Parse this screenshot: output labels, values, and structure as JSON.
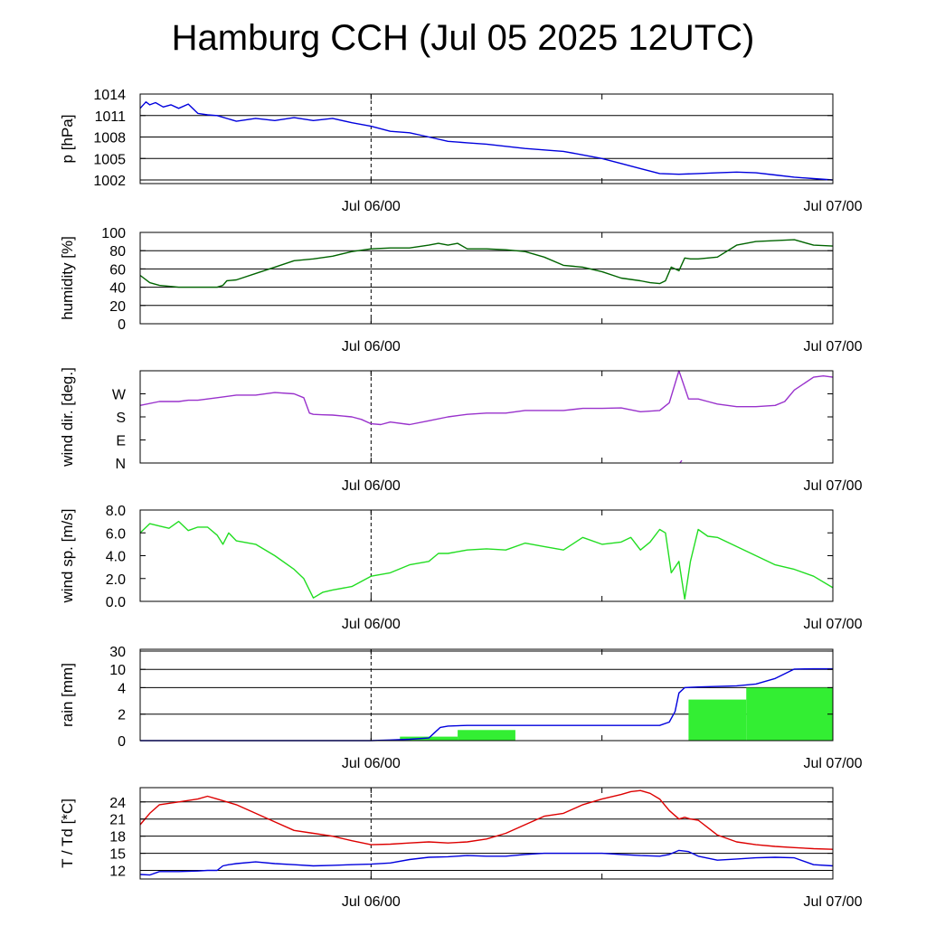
{
  "page": {
    "title": "Hamburg CCH (Jul 05 2025 12UTC)"
  },
  "x_axis": {
    "domain_hours": [
      0,
      36
    ],
    "tick_hours": [
      12,
      24,
      36
    ],
    "label_hours": [
      12,
      36
    ],
    "labels": [
      "Jul 06/00",
      "Jul 07/00"
    ],
    "dashed_marker_hour": 12
  },
  "chart_data": [
    {
      "type": "line",
      "ylabel": "p [hPa]",
      "ylim": [
        1001.5,
        1014
      ],
      "yticks": [
        1014,
        1011,
        1008,
        1005,
        1002
      ],
      "ytick_labels": [
        "1014",
        "1011",
        "1008",
        "1005",
        "1002"
      ],
      "grid": true,
      "series": [
        {
          "color": "#0000dd",
          "x": [
            0,
            0.3,
            0.5,
            0.8,
            1.2,
            1.6,
            2,
            2.5,
            3,
            3.5,
            4,
            5,
            6,
            7,
            8,
            9,
            10,
            11,
            12,
            13,
            14,
            15,
            16,
            17,
            18,
            19,
            20,
            21,
            22,
            23,
            24,
            25,
            26,
            27,
            28,
            29,
            30,
            31,
            32,
            33,
            34,
            35,
            36
          ],
          "y": [
            1012.0,
            1012.9,
            1012.5,
            1012.8,
            1012.2,
            1012.5,
            1012.0,
            1012.6,
            1011.3,
            1011.1,
            1011.0,
            1010.2,
            1010.6,
            1010.3,
            1010.7,
            1010.3,
            1010.6,
            1010.0,
            1009.5,
            1008.8,
            1008.6,
            1008.0,
            1007.4,
            1007.2,
            1007.0,
            1006.7,
            1006.4,
            1006.2,
            1006.0,
            1005.5,
            1005.0,
            1004.3,
            1003.6,
            1002.9,
            1002.8,
            1002.9,
            1003.0,
            1003.1,
            1003.0,
            1002.7,
            1002.4,
            1002.2,
            1002.0
          ]
        }
      ]
    },
    {
      "type": "line",
      "ylabel": "humidity [%]",
      "ylim": [
        0,
        100
      ],
      "yticks": [
        0,
        20,
        40,
        60,
        80,
        100
      ],
      "ytick_labels": [
        "0",
        "20",
        "40",
        "60",
        "80",
        "100"
      ],
      "grid": true,
      "series": [
        {
          "color": "#006400",
          "x": [
            0,
            0.5,
            1,
            1.5,
            2,
            3,
            4,
            4.3,
            4.5,
            5,
            6,
            7,
            8,
            9,
            10,
            11,
            12,
            13,
            14,
            15,
            15.5,
            16,
            16.5,
            17,
            18,
            19,
            20,
            21,
            22,
            23,
            24,
            25,
            26,
            26.5,
            27,
            27.3,
            27.6,
            28,
            28.3,
            28.6,
            29,
            30,
            31,
            32,
            33,
            34,
            35,
            36
          ],
          "y": [
            53,
            45,
            42,
            41,
            40,
            40,
            40,
            42,
            47,
            48,
            55,
            62,
            69,
            71,
            74,
            79,
            82,
            83,
            83,
            86,
            88,
            86,
            88,
            82,
            82,
            81,
            79,
            73,
            64,
            62,
            57,
            50,
            47,
            45,
            44,
            47,
            62,
            58,
            72,
            71,
            71,
            73,
            86,
            90,
            91,
            92,
            86,
            85
          ]
        }
      ]
    },
    {
      "type": "scatter",
      "ylabel": "wind dir. [deg.]",
      "ylim": [
        0,
        360
      ],
      "yticks": [
        0,
        90,
        180,
        270
      ],
      "ytick_labels": [
        "N",
        "E",
        "S",
        "W"
      ],
      "grid": false,
      "series": [
        {
          "color": "#9932cc",
          "x": [
            0,
            1,
            2,
            2.5,
            3,
            4,
            5,
            6,
            7,
            8,
            8.5,
            8.8,
            9,
            9.5,
            10,
            11,
            11.5,
            12,
            12.5,
            13,
            14,
            15,
            16,
            17,
            18,
            19,
            20,
            21,
            22,
            23,
            24,
            25,
            26,
            27,
            27.5,
            28,
            28.5,
            29,
            29.5,
            30,
            31,
            32,
            33,
            33.5,
            34,
            35,
            35.5,
            36
          ],
          "y": [
            225,
            240,
            240,
            245,
            245,
            255,
            265,
            265,
            275,
            270,
            255,
            195,
            190,
            188,
            187,
            180,
            170,
            153,
            150,
            160,
            150,
            165,
            180,
            190,
            195,
            195,
            205,
            205,
            205,
            213,
            213,
            215,
            200,
            205,
            235,
            360,
            250,
            250,
            240,
            230,
            220,
            220,
            225,
            240,
            285,
            335,
            340,
            335
          ]
        },
        {
          "color": "#9932cc",
          "x": [
            28.05,
            28.15
          ],
          "y": [
            0,
            10
          ]
        }
      ]
    },
    {
      "type": "line",
      "ylabel": "wind sp. [m/s]",
      "ylim": [
        0,
        8
      ],
      "yticks": [
        0,
        2,
        4,
        6,
        8
      ],
      "ytick_labels": [
        "0.0",
        "2.0",
        "4.0",
        "6.0",
        "8.0"
      ],
      "grid": false,
      "series": [
        {
          "color": "#22dd22",
          "x": [
            0,
            0.5,
            1,
            1.5,
            2,
            2.5,
            3,
            3.5,
            4,
            4.3,
            4.6,
            5,
            6,
            7,
            8,
            8.5,
            9,
            9.5,
            10,
            11,
            12,
            13,
            14,
            15,
            15.5,
            16,
            17,
            18,
            19,
            20,
            21,
            22,
            23,
            24,
            25,
            25.5,
            26,
            26.5,
            27,
            27.3,
            27.6,
            28,
            28.3,
            28.6,
            29,
            29.5,
            30,
            31,
            32,
            33,
            34,
            35,
            36
          ],
          "y": [
            6.0,
            6.8,
            6.6,
            6.4,
            7.0,
            6.2,
            6.5,
            6.5,
            5.8,
            5.0,
            6.0,
            5.3,
            5.0,
            4.0,
            2.8,
            2.0,
            0.3,
            0.8,
            1.0,
            1.3,
            2.2,
            2.5,
            3.2,
            3.5,
            4.2,
            4.2,
            4.5,
            4.6,
            4.5,
            5.1,
            4.8,
            4.5,
            5.6,
            5.0,
            5.2,
            5.6,
            4.5,
            5.2,
            6.3,
            6.0,
            2.5,
            3.5,
            0.2,
            3.5,
            6.3,
            5.7,
            5.6,
            4.8,
            4.0,
            3.2,
            2.8,
            2.2,
            1.2
          ]
        }
      ]
    },
    {
      "type": "bar",
      "ylabel": "rain [mm]",
      "ylim": [
        0,
        30
      ],
      "yticks": [
        0,
        2,
        4,
        10,
        30
      ],
      "ytick_labels": [
        "0",
        "2",
        "4",
        "10",
        "30"
      ],
      "scale": "nonlinear",
      "grid": true,
      "bars": {
        "color": "#33ee33",
        "x0": [
          13.5,
          16.5,
          28.5,
          31.5
        ],
        "x1": [
          16.5,
          19.5,
          31.5,
          36
        ],
        "values": [
          0.3,
          0.8,
          3.1,
          4.0
        ]
      },
      "series": [
        {
          "color": "#0000dd",
          "x": [
            0,
            12,
            13,
            14,
            15,
            15.3,
            15.6,
            16,
            17,
            18,
            20,
            22,
            24,
            26,
            27,
            27.5,
            27.8,
            28,
            28.3,
            28.6,
            29,
            30,
            31,
            32,
            33,
            34,
            35,
            36
          ],
          "y": [
            0,
            0,
            0.05,
            0.1,
            0.2,
            0.6,
            1.0,
            1.1,
            1.15,
            1.15,
            1.15,
            1.15,
            1.15,
            1.15,
            1.15,
            1.4,
            2.2,
            3.6,
            4.0,
            4.1,
            4.2,
            4.4,
            4.6,
            5.2,
            7.0,
            10.3,
            10.6,
            10.6
          ]
        }
      ]
    },
    {
      "type": "line",
      "ylabel": "T / Td [*C]",
      "ylim": [
        10.5,
        26.5
      ],
      "yticks": [
        12,
        15,
        18,
        21,
        24
      ],
      "ytick_labels": [
        "12",
        "15",
        "18",
        "21",
        "24"
      ],
      "grid": true,
      "series": [
        {
          "color": "#dd0000",
          "x": [
            0,
            0.5,
            1,
            2,
            3,
            3.5,
            4,
            5,
            6,
            7,
            8,
            9,
            10,
            11,
            12,
            13,
            14,
            15,
            16,
            17,
            18,
            19,
            20,
            21,
            22,
            23,
            24,
            25,
            25.5,
            26,
            26.5,
            27,
            27.5,
            28,
            28.3,
            28.6,
            29,
            29.5,
            30,
            31,
            32,
            33,
            34,
            35,
            36
          ],
          "y": [
            20.0,
            22.0,
            23.5,
            24.0,
            24.5,
            25.0,
            24.5,
            23.5,
            22.0,
            20.5,
            19.0,
            18.5,
            18.0,
            17.2,
            16.5,
            16.6,
            16.8,
            17.0,
            16.8,
            17.0,
            17.5,
            18.5,
            20.0,
            21.5,
            22.0,
            23.5,
            24.5,
            25.3,
            25.8,
            26.0,
            25.5,
            24.5,
            22.5,
            21.0,
            21.3,
            21.0,
            20.8,
            19.5,
            18.2,
            17.0,
            16.5,
            16.2,
            16.0,
            15.8,
            15.7
          ]
        },
        {
          "color": "#0000dd",
          "x": [
            0,
            0.5,
            1,
            2,
            3,
            3.5,
            4,
            4.3,
            4.6,
            5,
            6,
            7,
            8,
            9,
            10,
            11,
            12,
            13,
            14,
            15,
            16,
            17,
            18,
            19,
            20,
            21,
            22,
            23,
            24,
            25,
            26,
            27,
            27.5,
            28,
            28.5,
            29,
            30,
            31,
            32,
            33,
            34,
            35,
            36
          ],
          "y": [
            11.3,
            11.2,
            11.8,
            11.8,
            11.9,
            12.0,
            12.0,
            12.8,
            13.0,
            13.2,
            13.5,
            13.2,
            13.0,
            12.8,
            12.9,
            13.0,
            13.1,
            13.3,
            13.9,
            14.3,
            14.4,
            14.6,
            14.5,
            14.5,
            14.8,
            15.0,
            15.0,
            15.0,
            15.0,
            14.8,
            14.6,
            14.5,
            14.8,
            15.5,
            15.3,
            14.5,
            13.8,
            14.0,
            14.2,
            14.3,
            14.2,
            13.0,
            12.8
          ]
        }
      ]
    }
  ]
}
